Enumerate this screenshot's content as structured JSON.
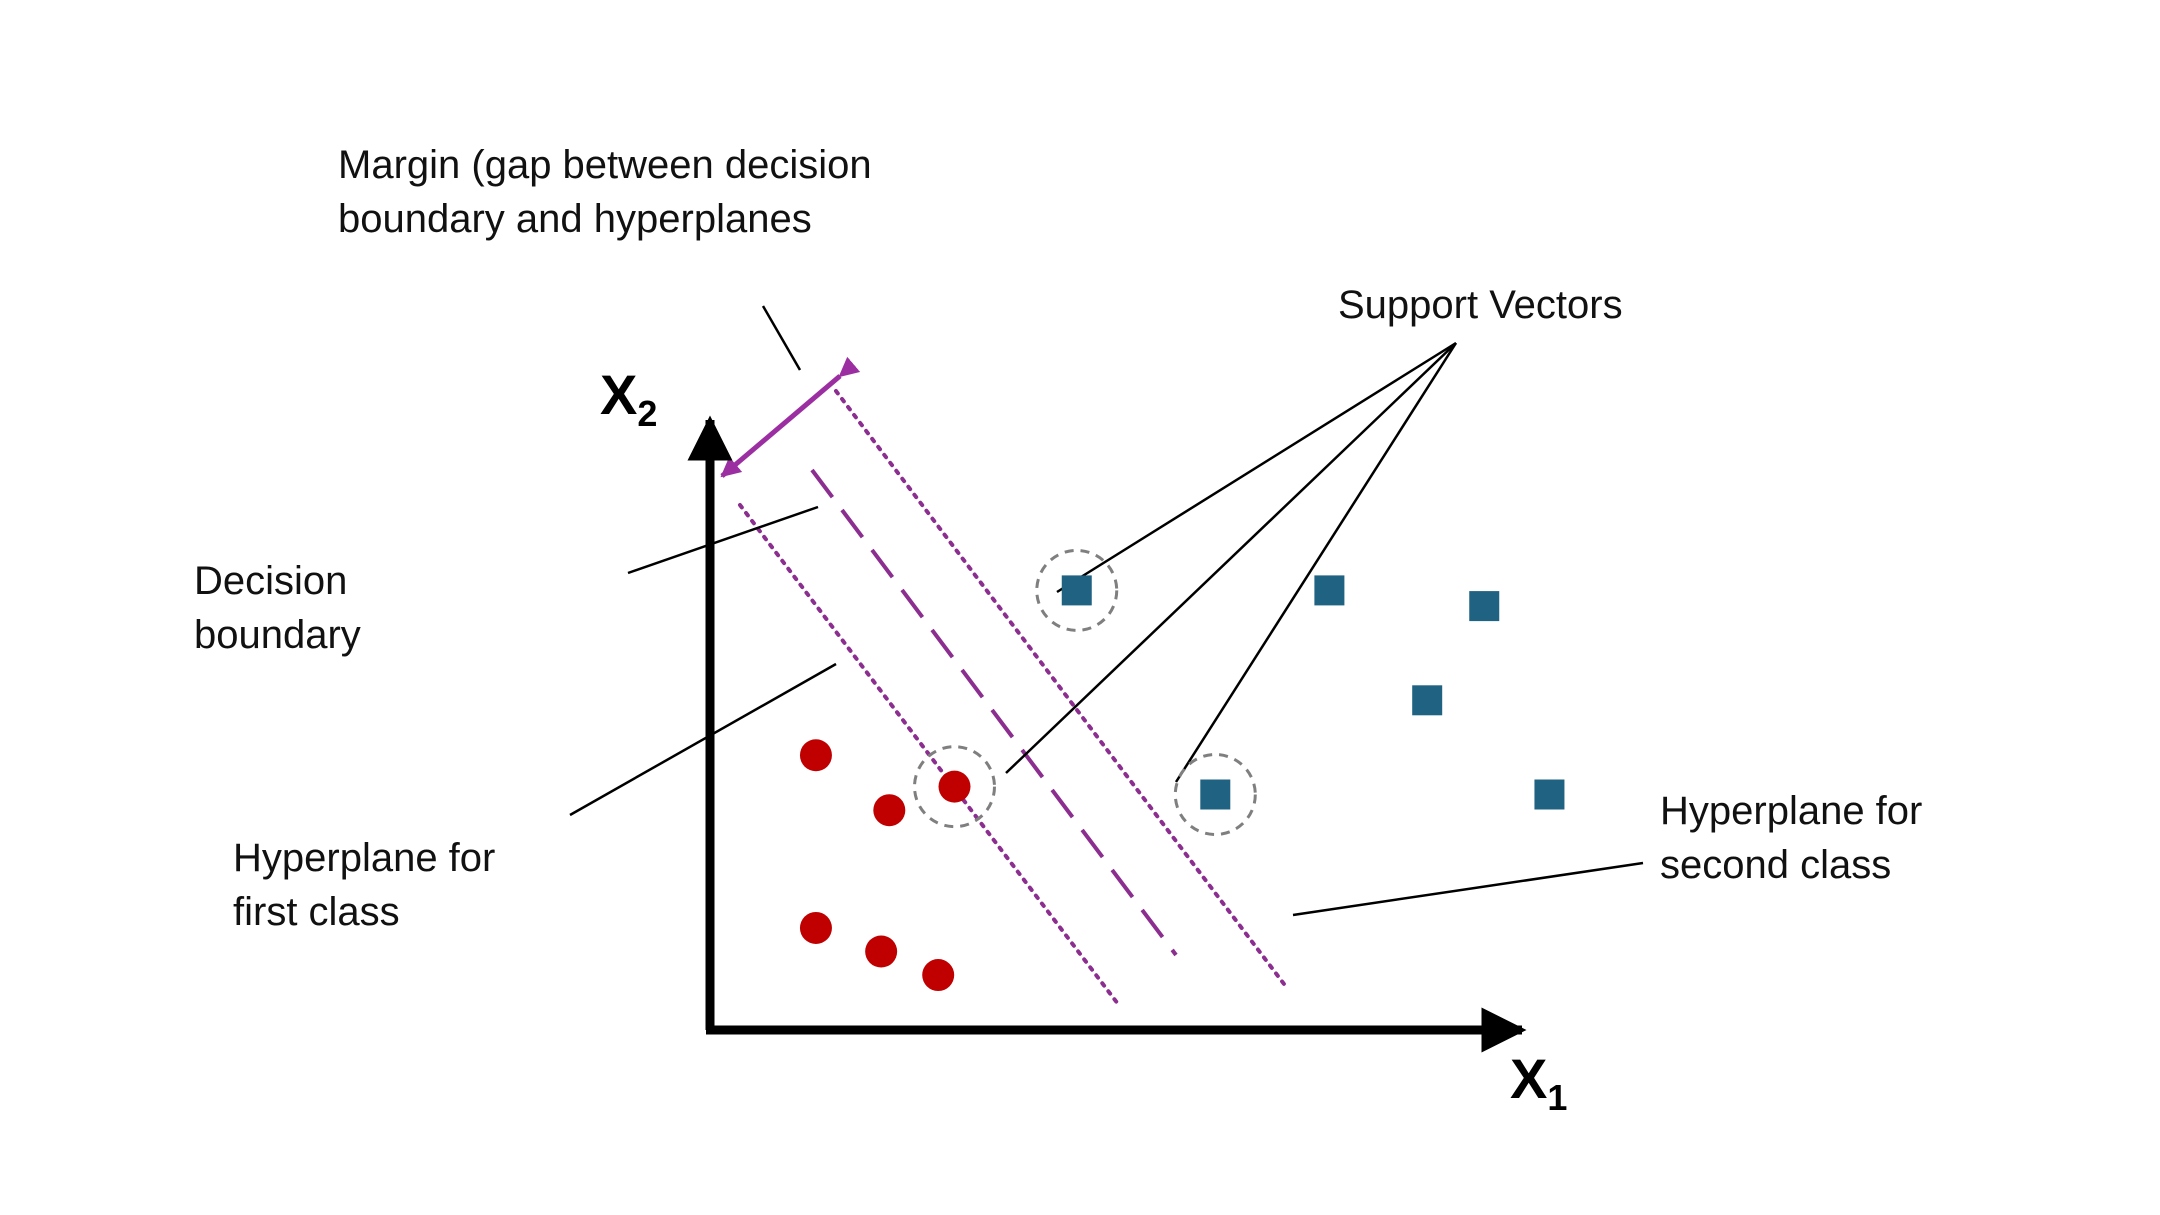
{
  "labels": {
    "margin_line1": "Margin (gap between decision",
    "margin_line2": "boundary and hyperplanes",
    "support_vectors": "Support Vectors",
    "decision_line1": "Decision",
    "decision_line2": "boundary",
    "first_line1": "Hyperplane for",
    "first_line2": "first class",
    "second_line1": "Hyperplane for",
    "second_line2": "second class"
  },
  "axes": {
    "x_main": "X",
    "x_sub": "1",
    "y_main": "X",
    "y_sub": "2"
  },
  "colors": {
    "class_one": "#c00000",
    "class_two": "#1f6282",
    "hyperplanes": "#8b2e8f",
    "margin_arrow": "#9b2fa2",
    "axes": "#000000",
    "support_circle": "#7f7f7f"
  },
  "points": {
    "class_one": [
      {
        "x": 1.3,
        "y": 3.5
      },
      {
        "x": 2.2,
        "y": 2.8
      },
      {
        "x": 1.3,
        "y": 1.3
      },
      {
        "x": 2.1,
        "y": 1.0
      },
      {
        "x": 3.0,
        "y": 3.1
      },
      {
        "x": 2.8,
        "y": 0.7
      }
    ],
    "class_two": [
      {
        "x": 4.5,
        "y": 5.6
      },
      {
        "x": 7.6,
        "y": 5.6
      },
      {
        "x": 9.5,
        "y": 5.4
      },
      {
        "x": 8.8,
        "y": 4.2
      },
      {
        "x": 6.2,
        "y": 3.0
      },
      {
        "x": 10.3,
        "y": 3.0
      }
    ],
    "support_vectors": [
      {
        "x": 4.5,
        "y": 5.6
      },
      {
        "x": 3.0,
        "y": 3.1
      },
      {
        "x": 6.2,
        "y": 3.0
      }
    ]
  }
}
